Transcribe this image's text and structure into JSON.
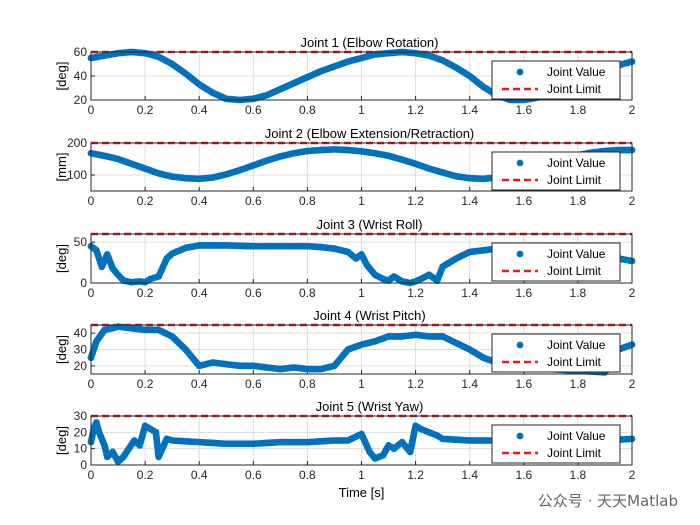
{
  "watermark": "公众号 · 天天Matlab",
  "colors": {
    "value": "#0072BD",
    "limit": "#E8191E",
    "grid": "#dcdcdc",
    "axis": "#262626"
  },
  "chart_data": [
    {
      "type": "scatter",
      "title": "Joint 1 (Elbow Rotation)",
      "xlabel": "",
      "ylabel": "[deg]",
      "xlim": [
        0,
        2
      ],
      "ylim": [
        20,
        60
      ],
      "xticks": [
        "0",
        "0.2",
        "0.4",
        "0.6",
        "0.8",
        "1",
        "1.2",
        "1.4",
        "1.6",
        "1.8",
        "2"
      ],
      "yticks": [
        "20",
        "40",
        "60"
      ],
      "grid": true,
      "legend": "right",
      "limit": 60,
      "series": [
        {
          "name": "Joint Value",
          "marker": "dot",
          "x": [
            0,
            0.05,
            0.1,
            0.15,
            0.2,
            0.25,
            0.3,
            0.35,
            0.4,
            0.45,
            0.5,
            0.55,
            0.6,
            0.65,
            0.7,
            0.75,
            0.8,
            0.85,
            0.9,
            0.95,
            1.0,
            1.05,
            1.1,
            1.15,
            1.2,
            1.25,
            1.3,
            1.35,
            1.4,
            1.45,
            1.5,
            1.55,
            1.6,
            1.65,
            1.7,
            1.75,
            1.8,
            1.85,
            1.9,
            1.95,
            2.0
          ],
          "y": [
            55,
            57,
            59,
            60,
            59,
            56,
            50,
            42,
            33,
            26,
            21,
            20,
            21,
            24,
            29,
            34,
            39,
            44,
            48,
            52,
            55,
            58,
            59,
            60,
            59,
            57,
            53,
            47,
            40,
            31,
            24,
            20,
            20,
            22,
            26,
            31,
            36,
            41,
            45,
            49,
            52
          ]
        },
        {
          "name": "Joint Limit",
          "marker": "dashed",
          "x": [
            0,
            2
          ],
          "y": [
            60,
            60
          ]
        }
      ]
    },
    {
      "type": "scatter",
      "title": "Joint 2 (Elbow Extension/Retraction)",
      "xlabel": "",
      "ylabel": "[mm]",
      "xlim": [
        0,
        2
      ],
      "ylim": [
        50,
        200
      ],
      "xticks": [
        "0",
        "0.2",
        "0.4",
        "0.6",
        "0.8",
        "1",
        "1.2",
        "1.4",
        "1.6",
        "1.8",
        "2"
      ],
      "yticks": [
        "100",
        "200"
      ],
      "ytickvals": [
        100,
        200
      ],
      "grid": true,
      "legend": "right",
      "limit": 200,
      "series": [
        {
          "name": "Joint Value",
          "marker": "dot",
          "x": [
            0,
            0.05,
            0.1,
            0.15,
            0.2,
            0.25,
            0.3,
            0.35,
            0.4,
            0.45,
            0.5,
            0.55,
            0.6,
            0.65,
            0.7,
            0.75,
            0.8,
            0.85,
            0.9,
            0.95,
            1.0,
            1.05,
            1.1,
            1.15,
            1.2,
            1.25,
            1.3,
            1.35,
            1.4,
            1.45,
            1.5,
            1.55,
            1.6,
            1.65,
            1.7,
            1.75,
            1.8,
            1.85,
            1.9,
            1.95,
            2.0
          ],
          "y": [
            168,
            160,
            150,
            135,
            120,
            105,
            95,
            90,
            88,
            92,
            102,
            115,
            130,
            145,
            158,
            168,
            175,
            178,
            180,
            178,
            174,
            168,
            160,
            148,
            135,
            120,
            108,
            96,
            90,
            88,
            92,
            100,
            112,
            125,
            140,
            152,
            162,
            170,
            175,
            178,
            178
          ]
        },
        {
          "name": "Joint Limit",
          "marker": "dashed",
          "x": [
            0,
            2
          ],
          "y": [
            200,
            200
          ]
        }
      ]
    },
    {
      "type": "scatter",
      "title": "Joint 3 (Wrist Roll)",
      "xlabel": "",
      "ylabel": "[deg]",
      "xlim": [
        0,
        2
      ],
      "ylim": [
        0,
        60
      ],
      "xticks": [
        "0",
        "0.2",
        "0.4",
        "0.6",
        "0.8",
        "1",
        "1.2",
        "1.4",
        "1.6",
        "1.8",
        "2"
      ],
      "yticks": [
        "0",
        "50"
      ],
      "ytickvals": [
        0,
        50
      ],
      "grid": true,
      "legend": "right",
      "limit": 60,
      "series": [
        {
          "name": "Joint Value",
          "marker": "dot",
          "x": [
            0,
            0.02,
            0.04,
            0.06,
            0.08,
            0.1,
            0.12,
            0.15,
            0.18,
            0.2,
            0.22,
            0.25,
            0.28,
            0.3,
            0.35,
            0.4,
            0.5,
            0.6,
            0.7,
            0.8,
            0.85,
            0.9,
            0.95,
            0.98,
            1.0,
            1.02,
            1.05,
            1.08,
            1.1,
            1.12,
            1.15,
            1.18,
            1.2,
            1.22,
            1.25,
            1.28,
            1.3,
            1.35,
            1.4,
            1.5,
            1.6,
            1.7,
            1.8,
            1.9,
            1.95,
            2.0
          ],
          "y": [
            45,
            40,
            20,
            35,
            18,
            10,
            3,
            1,
            2,
            1,
            5,
            8,
            30,
            36,
            43,
            46,
            46,
            45,
            45,
            45,
            44,
            42,
            38,
            30,
            35,
            22,
            10,
            5,
            3,
            8,
            2,
            0,
            2,
            5,
            10,
            3,
            20,
            30,
            38,
            42,
            43,
            42,
            40,
            38,
            30,
            27
          ]
        },
        {
          "name": "Joint Limit",
          "marker": "dashed",
          "x": [
            0,
            2
          ],
          "y": [
            60,
            60
          ]
        }
      ]
    },
    {
      "type": "scatter",
      "title": "Joint 4 (Wrist Pitch)",
      "xlabel": "",
      "ylabel": "[deg]",
      "xlim": [
        0,
        2
      ],
      "ylim": [
        15,
        45
      ],
      "xticks": [
        "0",
        "0.2",
        "0.4",
        "0.6",
        "0.8",
        "1",
        "1.2",
        "1.4",
        "1.6",
        "1.8",
        "2"
      ],
      "yticks": [
        "20",
        "30",
        "40"
      ],
      "ytickvals": [
        20,
        30,
        40
      ],
      "grid": true,
      "legend": "right",
      "limit": 45,
      "series": [
        {
          "name": "Joint Value",
          "marker": "dot",
          "x": [
            0,
            0.02,
            0.05,
            0.08,
            0.1,
            0.15,
            0.2,
            0.25,
            0.3,
            0.35,
            0.4,
            0.45,
            0.5,
            0.55,
            0.6,
            0.65,
            0.7,
            0.75,
            0.8,
            0.85,
            0.9,
            0.95,
            1.0,
            1.05,
            1.1,
            1.15,
            1.2,
            1.25,
            1.3,
            1.35,
            1.4,
            1.45,
            1.5,
            1.55,
            1.6,
            1.7,
            1.8,
            1.9,
            1.95,
            2.0
          ],
          "y": [
            25,
            35,
            42,
            43,
            44,
            43,
            42,
            42,
            38,
            30,
            20,
            22,
            21,
            20,
            20,
            19,
            18,
            19,
            18,
            18,
            20,
            30,
            33,
            35,
            38,
            38,
            39,
            38,
            38,
            34,
            30,
            25,
            22,
            20,
            20,
            18,
            17,
            16,
            30,
            33
          ]
        },
        {
          "name": "Joint Limit",
          "marker": "dashed",
          "x": [
            0,
            2
          ],
          "y": [
            45,
            45
          ]
        }
      ]
    },
    {
      "type": "scatter",
      "title": "Joint 5 (Wrist Yaw)",
      "xlabel": "Time [s]",
      "ylabel": "[deg]",
      "xlim": [
        0,
        2
      ],
      "ylim": [
        0,
        30
      ],
      "xticks": [
        "0",
        "0.2",
        "0.4",
        "0.6",
        "0.8",
        "1",
        "1.2",
        "1.4",
        "1.6",
        "1.8",
        "2"
      ],
      "yticks": [
        "0",
        "10",
        "20",
        "30"
      ],
      "ytickvals": [
        0,
        10,
        20,
        30
      ],
      "grid": true,
      "legend": "right",
      "limit": 30,
      "series": [
        {
          "name": "Joint Value",
          "marker": "dot",
          "x": [
            0,
            0.01,
            0.02,
            0.03,
            0.05,
            0.06,
            0.08,
            0.1,
            0.12,
            0.14,
            0.16,
            0.18,
            0.2,
            0.22,
            0.24,
            0.25,
            0.28,
            0.3,
            0.4,
            0.5,
            0.6,
            0.7,
            0.8,
            0.9,
            0.95,
            1.0,
            1.03,
            1.05,
            1.08,
            1.1,
            1.12,
            1.15,
            1.18,
            1.2,
            1.22,
            1.25,
            1.28,
            1.3,
            1.4,
            1.5,
            1.6,
            1.7,
            1.8,
            1.9,
            2.0
          ],
          "y": [
            14,
            22,
            26,
            20,
            12,
            5,
            8,
            2,
            5,
            10,
            15,
            12,
            24,
            22,
            20,
            5,
            16,
            15,
            14,
            13,
            13,
            14,
            14,
            15,
            15,
            19,
            8,
            4,
            6,
            12,
            10,
            14,
            8,
            24,
            22,
            20,
            18,
            16,
            15,
            15,
            14,
            14,
            14,
            15,
            16
          ]
        },
        {
          "name": "Joint Limit",
          "marker": "dashed",
          "x": [
            0,
            2
          ],
          "y": [
            30,
            30
          ]
        }
      ]
    }
  ]
}
